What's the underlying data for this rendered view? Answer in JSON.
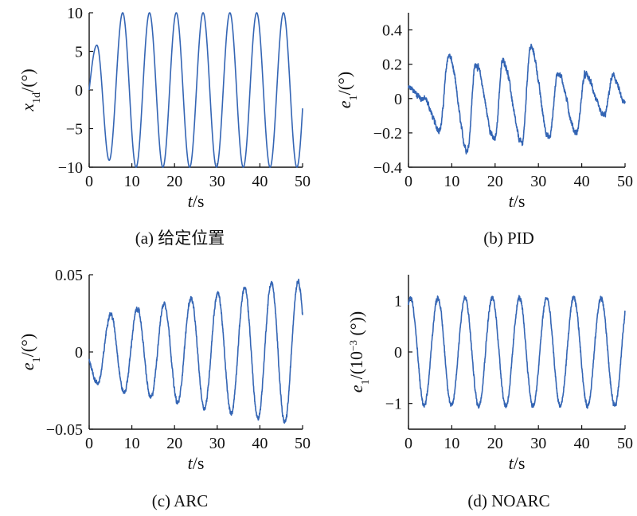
{
  "chart_data": [
    {
      "type": "line",
      "caption": "(a) 给定位置",
      "xlabel_var": "t",
      "xlabel_unit": "/s",
      "ylabel_var": "x",
      "ylabel_sub": "1d",
      "ylabel_sup": "",
      "ylabel_unit": "/(°)",
      "xlim": [
        0,
        50
      ],
      "ylim": [
        -10,
        10
      ],
      "xticks": [
        0,
        10,
        20,
        30,
        40,
        50
      ],
      "yticks": [
        -10,
        -5,
        0,
        5,
        10
      ],
      "xtick_labels": [
        "0",
        "10",
        "20",
        "30",
        "40",
        "50"
      ],
      "ytick_labels": [
        "−10",
        "−5",
        "0",
        "5",
        "10"
      ],
      "color": "#3465b4",
      "curve": {
        "period": 6.28,
        "amplitude": 10,
        "initial_peak_t": 1.8,
        "initial_peak_y": 5.8,
        "first_trough_t": 4.7,
        "first_trough_y": -9.1,
        "x_end": 50,
        "y_end": -2.7,
        "noise": 0
      }
    },
    {
      "type": "line",
      "caption": "(b) PID",
      "xlabel_var": "t",
      "xlabel_unit": "/s",
      "ylabel_var": "e",
      "ylabel_sub": "1",
      "ylabel_sup": "",
      "ylabel_unit": "/(°)",
      "xlim": [
        0,
        50
      ],
      "ylim": [
        -0.4,
        0.5
      ],
      "xticks": [
        0,
        10,
        20,
        30,
        40,
        50
      ],
      "yticks": [
        -0.4,
        -0.2,
        0,
        0.2,
        0.4
      ],
      "xtick_labels": [
        "0",
        "10",
        "20",
        "30",
        "40",
        "50"
      ],
      "ytick_labels": [
        "−0.4",
        "−0.2",
        "0",
        "0.2",
        "0.4"
      ],
      "color": "#3465b4",
      "curve": {
        "peaks": [
          [
            9.3,
            0.25
          ],
          [
            15.5,
            0.2
          ],
          [
            21.8,
            0.22
          ],
          [
            28.2,
            0.3
          ],
          [
            34.5,
            0.15
          ],
          [
            40.8,
            0.14
          ],
          [
            47.2,
            0.13
          ]
        ],
        "troughs": [
          [
            7.2,
            -0.18
          ],
          [
            13.6,
            -0.3
          ],
          [
            19.9,
            -0.24
          ],
          [
            26.2,
            -0.26
          ],
          [
            32.5,
            -0.23
          ],
          [
            38.8,
            -0.2
          ],
          [
            45.2,
            -0.1
          ]
        ],
        "start_y": 0.06,
        "y_end": -0.03,
        "noise": 0.03
      }
    },
    {
      "type": "line",
      "caption": "(c) ARC",
      "xlabel_var": "t",
      "xlabel_unit": "/s",
      "ylabel_var": "e",
      "ylabel_sub": "1",
      "ylabel_sup": "",
      "ylabel_unit": "/(°)",
      "xlim": [
        0,
        50
      ],
      "ylim": [
        -0.05,
        0.05
      ],
      "xticks": [
        0,
        10,
        20,
        30,
        40,
        50
      ],
      "yticks": [
        -0.05,
        0,
        0.05
      ],
      "xtick_labels": [
        "0",
        "10",
        "20",
        "30",
        "40",
        "50"
      ],
      "ytick_labels": [
        "−0.05",
        "0",
        "0.05"
      ],
      "color": "#3465b4",
      "curve": {
        "period": 6.28,
        "amplitude_start": 0.022,
        "amplitude_end": 0.046,
        "start_y": -0.005,
        "dip_t": 1.5,
        "dip_y": -0.017,
        "y_end": 0.024,
        "noise": 0.003
      }
    },
    {
      "type": "line",
      "caption": "(d) NOARC",
      "xlabel_var": "t",
      "xlabel_unit": "/s",
      "ylabel_var": "e",
      "ylabel_sub": "1",
      "ylabel_sup": "−3",
      "ylabel_unit": "/(10 (°))",
      "xlim": [
        0,
        50
      ],
      "ylim": [
        -1.5,
        1.5
      ],
      "xticks": [
        0,
        10,
        20,
        30,
        40,
        50
      ],
      "yticks": [
        -1,
        0,
        1
      ],
      "xtick_labels": [
        "0",
        "10",
        "20",
        "30",
        "40",
        "50"
      ],
      "ytick_labels": [
        "−1",
        "0",
        "1"
      ],
      "color": "#3465b4",
      "curve": {
        "period": 6.28,
        "amplitude": 1.05,
        "y_end": 1.0,
        "noise": 0.08
      }
    }
  ]
}
